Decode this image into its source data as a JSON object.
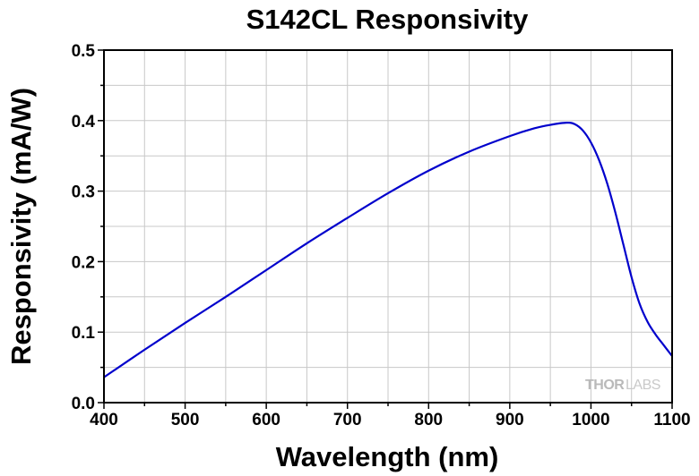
{
  "chart_data": {
    "type": "line",
    "title": "S142CL Responsivity",
    "xlabel": "Wavelength (nm)",
    "ylabel": "Responsivity (mA/W)",
    "xlim": [
      400,
      1100
    ],
    "ylim": [
      0.0,
      0.5
    ],
    "xticks": [
      400,
      500,
      600,
      700,
      800,
      900,
      1000,
      1100
    ],
    "yticks": [
      "0.0",
      "0.1",
      "0.2",
      "0.3",
      "0.4",
      "0.5"
    ],
    "grid": true,
    "series": [
      {
        "color": "#0000cc",
        "x": [
          400,
          450,
          500,
          550,
          600,
          650,
          700,
          750,
          800,
          850,
          900,
          930,
          950,
          970,
          980,
          990,
          1000,
          1010,
          1020,
          1030,
          1040,
          1050,
          1060,
          1070,
          1080,
          1090,
          1100
        ],
        "y": [
          0.036,
          0.075,
          0.113,
          0.15,
          0.188,
          0.226,
          0.262,
          0.297,
          0.329,
          0.356,
          0.378,
          0.389,
          0.394,
          0.397,
          0.395,
          0.386,
          0.369,
          0.344,
          0.311,
          0.27,
          0.224,
          0.178,
          0.14,
          0.114,
          0.096,
          0.081,
          0.066
        ]
      }
    ]
  },
  "watermark": {
    "text_a": "THOR",
    "text_b": "LABS"
  }
}
